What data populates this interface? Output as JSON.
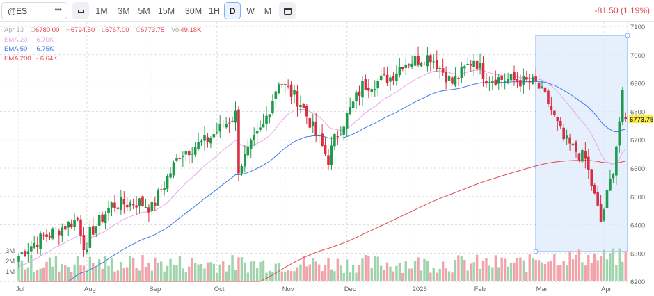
{
  "toolbar": {
    "symbol": "@ES",
    "more": "•••",
    "intervals": [
      "1M",
      "3M",
      "5M",
      "15M",
      "30M",
      "1H",
      "D",
      "W",
      "M"
    ],
    "selected": "D",
    "change": "-81.50 (1.19%)"
  },
  "ohlc": {
    "date": "Apr 13",
    "o_label": "O",
    "open": "6780.00",
    "h_label": "H",
    "high": "6794.50",
    "l_label": "L",
    "low": "6767.00",
    "c_label": "C",
    "close": "6773.75",
    "vol_label": "Vol",
    "vol": "49.18K"
  },
  "indicators": [
    {
      "name": "EMA 20",
      "value": "6.70K",
      "color": "#e6a6e6"
    },
    {
      "name": "EMA 50",
      "value": "6.75K",
      "color": "#3b7be8"
    },
    {
      "name": "EMA 200",
      "value": "6.64K",
      "color": "#e2464f"
    }
  ],
  "chart_data": {
    "type": "candlestick",
    "y_ticks": [
      7100,
      7000,
      6900,
      6800,
      6700,
      6600,
      6500,
      6400,
      6300,
      6200
    ],
    "ylim": [
      6200,
      7100
    ],
    "volume_ticks": [
      "3M",
      "2M",
      "1M"
    ],
    "x_ticks": [
      "Jul",
      "Aug",
      "Sep",
      "Oct",
      "Nov",
      "Dec",
      "2026",
      "Feb",
      "Mar",
      "Apr"
    ],
    "x_tick_day_index": [
      0,
      22,
      43,
      64,
      86,
      106,
      128,
      148,
      168,
      189
    ],
    "trading_days": 197,
    "approx_close_path": [
      [
        0,
        6290
      ],
      [
        3,
        6320
      ],
      [
        7,
        6350
      ],
      [
        19,
        6420
      ],
      [
        22,
        6290
      ],
      [
        23,
        6370
      ],
      [
        30,
        6470
      ],
      [
        39,
        6480
      ],
      [
        43,
        6460
      ],
      [
        52,
        6650
      ],
      [
        61,
        6700
      ],
      [
        70,
        6790
      ],
      [
        71,
        6600
      ],
      [
        79,
        6750
      ],
      [
        84,
        6910
      ],
      [
        91,
        6830
      ],
      [
        100,
        6630
      ],
      [
        102,
        6700
      ],
      [
        111,
        6890
      ],
      [
        120,
        6920
      ],
      [
        124,
        6970
      ],
      [
        133,
        6995
      ],
      [
        140,
        6900
      ],
      [
        147,
        6985
      ],
      [
        151,
        6920
      ],
      [
        160,
        6910
      ],
      [
        167,
        6900
      ],
      [
        171,
        6830
      ],
      [
        176,
        6700
      ],
      [
        183,
        6630
      ],
      [
        188,
        6410
      ],
      [
        192,
        6600
      ],
      [
        195,
        6850
      ],
      [
        196,
        6773.75
      ]
    ],
    "last_price": "6773.75",
    "up_color": "#1e9a4c",
    "down_color": "#d92d42"
  }
}
